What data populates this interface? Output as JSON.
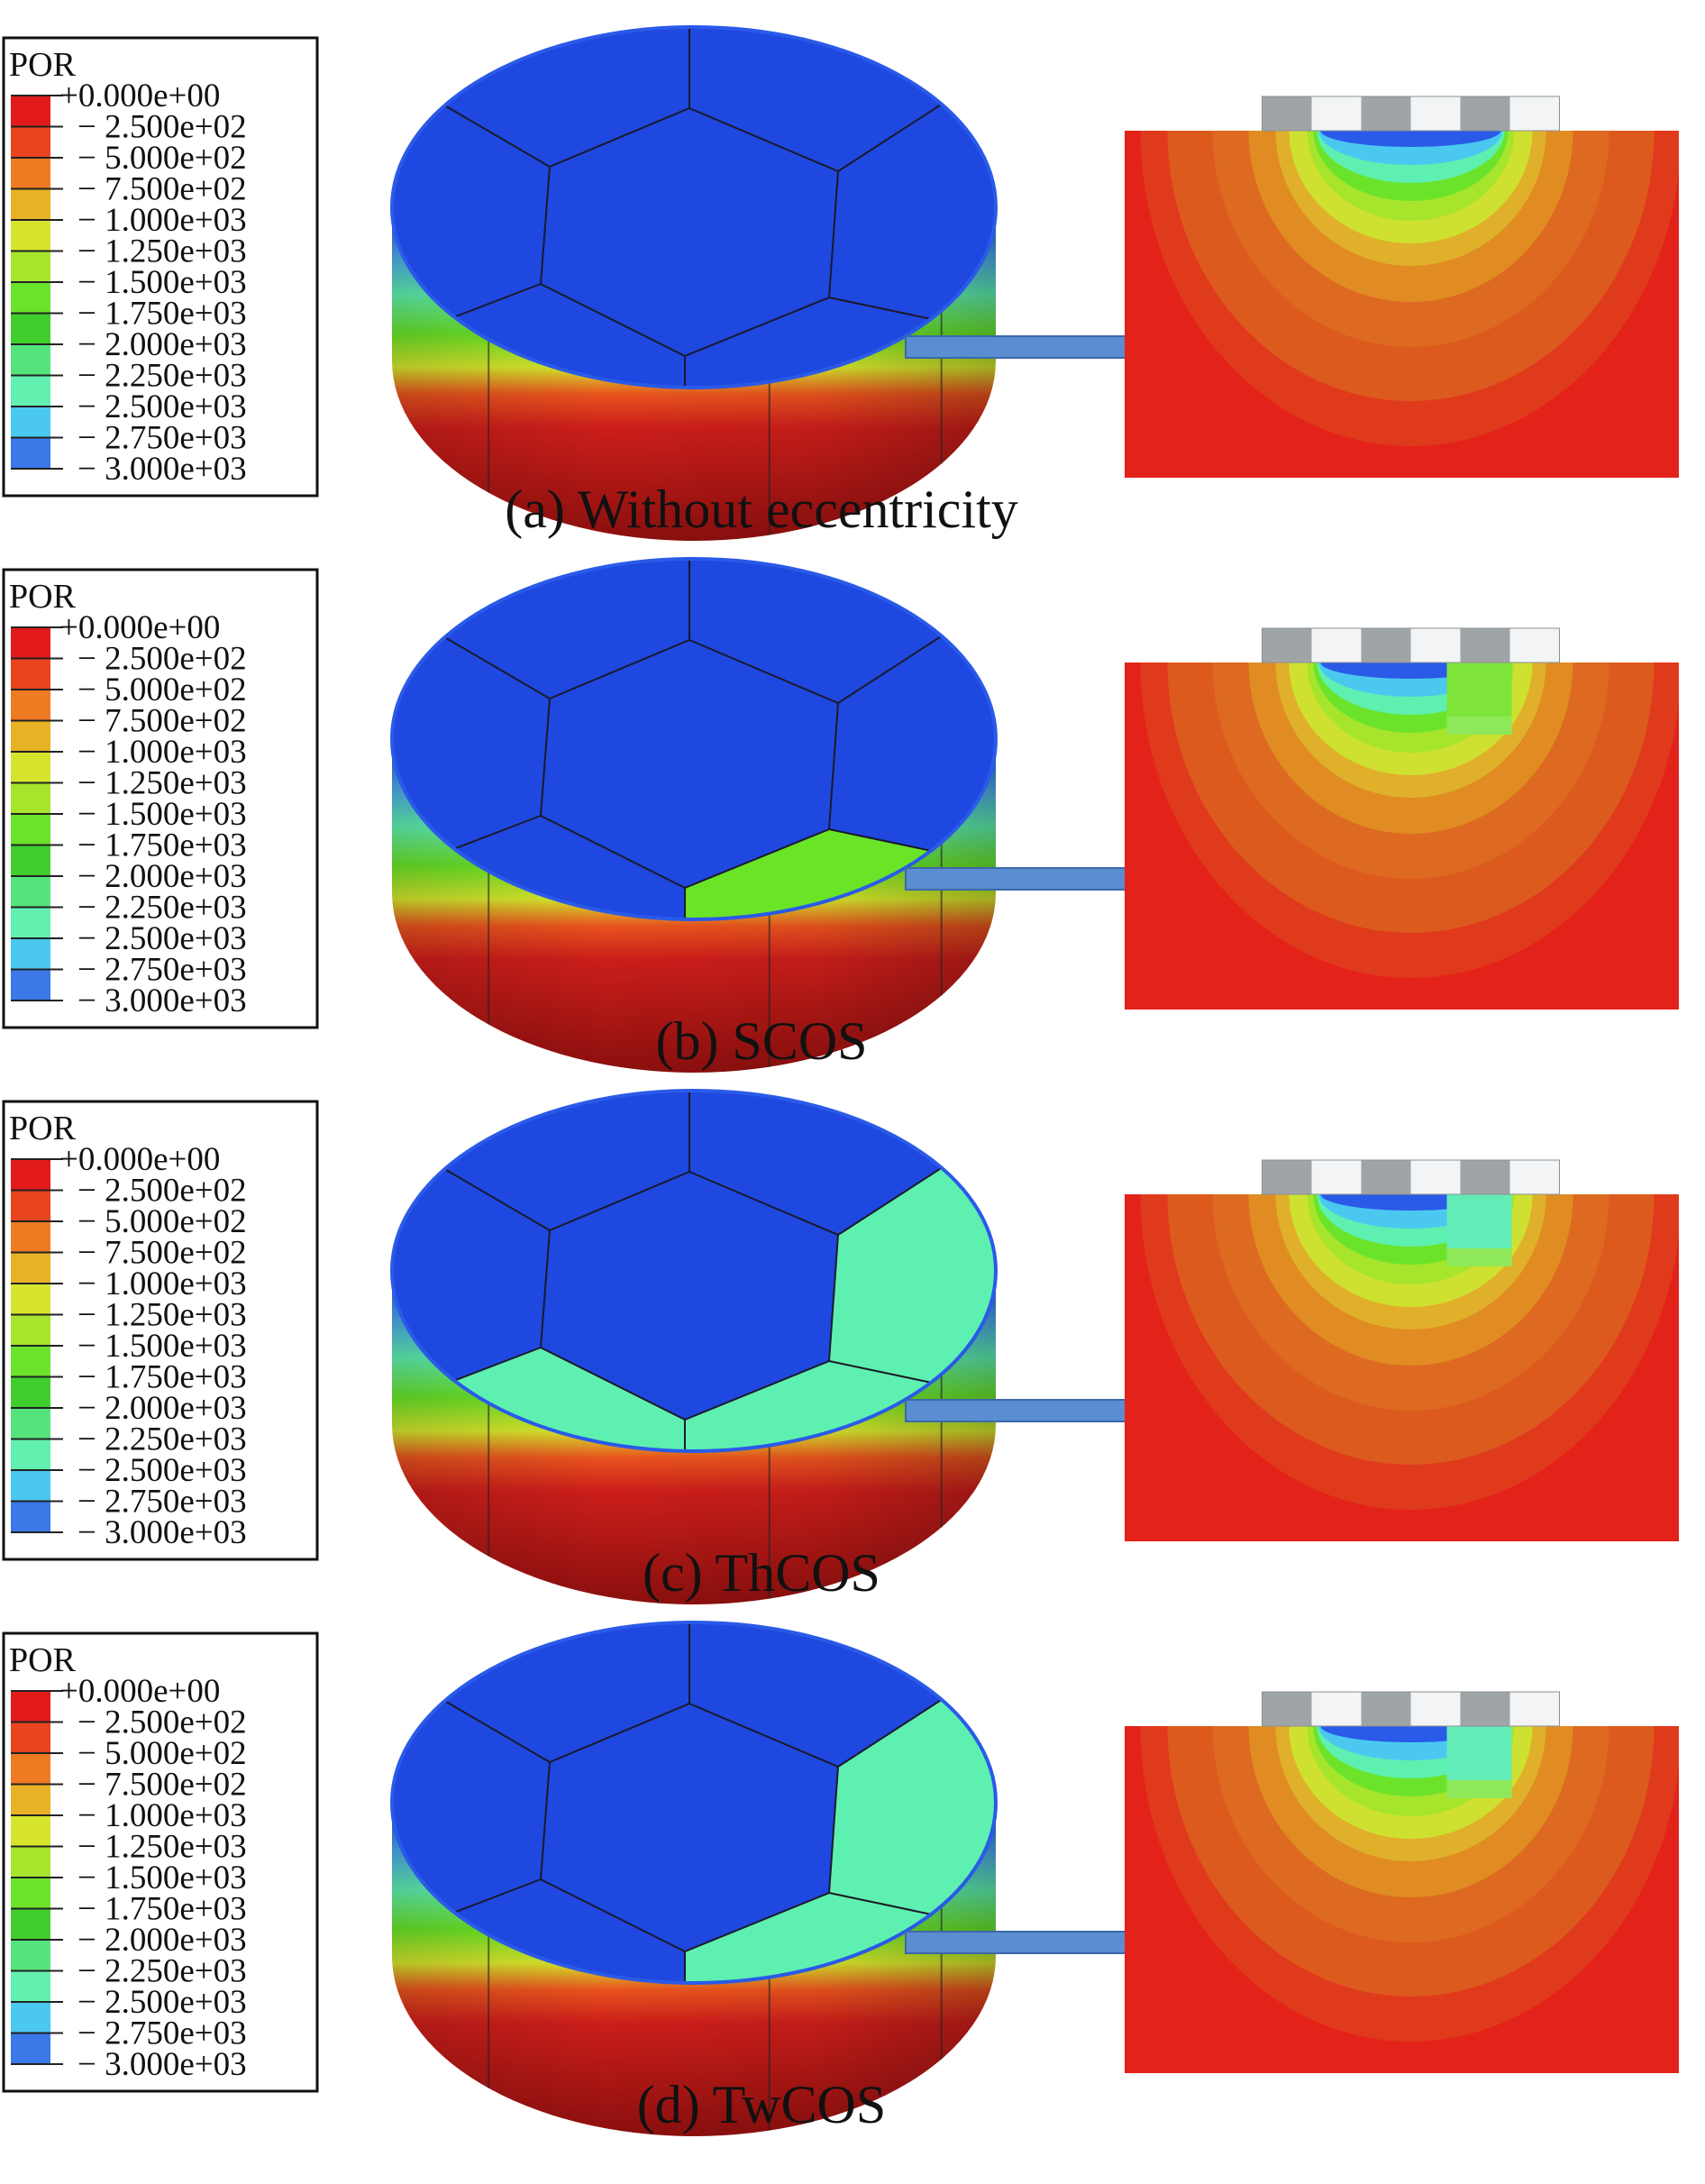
{
  "legend": {
    "title": "POR",
    "labels": [
      "+0.000e+00",
      "2.500e+02",
      "5.000e+02",
      "7.500e+02",
      "1.000e+03",
      "1.250e+03",
      "1.500e+03",
      "1.750e+03",
      "2.000e+03",
      "2.250e+03",
      "2.500e+03",
      "2.750e+03",
      "3.000e+03"
    ],
    "bands": [
      "#e21a1a",
      "#e8441e",
      "#ee7a22",
      "#e8b226",
      "#d6e52c",
      "#a6e52c",
      "#6be32a",
      "#3fce2c",
      "#55e47c",
      "#62f0b0",
      "#4bc8f0",
      "#3b78e8",
      "#2444dc"
    ]
  },
  "colors": {
    "blue_top": "#1f48e0",
    "blue_edge": "#2a5ae8",
    "green": "#6ae427",
    "aqua": "#5ef0b0",
    "side_red": "#c81c1a",
    "side_dark": "#8c0f0e",
    "field_red": "#e3231a",
    "field_orange": "#dd5a1e",
    "field_amber": "#e08c22",
    "field_yellow": "#cfe130",
    "arrow": "#5b8ed0",
    "plate_gray": "#9fa4a7",
    "plate_light": "#f2f4f5"
  },
  "panels": [
    {
      "caption": "(a) Without eccentricity",
      "segments": [
        "blue",
        "blue",
        "blue",
        "blue",
        "blue",
        "blue",
        "blue"
      ],
      "field_right": "blue"
    },
    {
      "caption": "(b) SCOS",
      "segments": [
        "blue",
        "blue",
        "green",
        "blue",
        "blue",
        "blue",
        "blue"
      ],
      "field_right": "green"
    },
    {
      "caption": "(c) ThCOS",
      "segments": [
        "blue",
        "aqua",
        "aqua",
        "aqua",
        "blue",
        "blue",
        "blue"
      ],
      "field_right": "aqua"
    },
    {
      "caption": "(d) TwCOS",
      "segments": [
        "blue",
        "aqua",
        "aqua",
        "blue",
        "blue",
        "blue",
        "blue"
      ],
      "field_right": "aqua"
    }
  ]
}
